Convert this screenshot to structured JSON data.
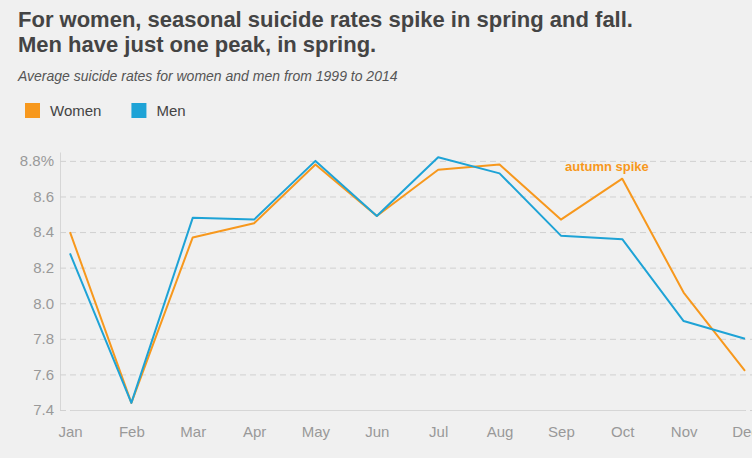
{
  "chart_data": {
    "type": "line",
    "title": [
      "For women, seasonal suicide rates spike in spring and fall.",
      "Men have just one peak, in spring."
    ],
    "subtitle": "Average suicide rates for women and men from 1999 to 2014",
    "annotation": "autumn spike",
    "categories": [
      "Jan",
      "Feb",
      "Mar",
      "Apr",
      "May",
      "Jun",
      "Jul",
      "Aug",
      "Sep",
      "Oct",
      "Nov",
      "Dec"
    ],
    "series": [
      {
        "name": "Women",
        "color": "#f7981d",
        "values": [
          8.4,
          7.44,
          8.37,
          8.45,
          8.78,
          8.49,
          8.75,
          8.78,
          8.47,
          8.7,
          8.06,
          7.62
        ]
      },
      {
        "name": "Men",
        "color": "#1ea3d6",
        "values": [
          8.28,
          7.44,
          8.48,
          8.47,
          8.8,
          8.49,
          8.82,
          8.73,
          8.38,
          8.36,
          7.9,
          7.8
        ]
      }
    ],
    "ylim": [
      7.4,
      8.85
    ],
    "yticks": [
      7.4,
      7.6,
      7.8,
      {
        "value": 8,
        "label": "8.0"
      },
      8.2,
      8.4,
      8.6,
      {
        "value": 8.8,
        "label": "8.8%"
      }
    ],
    "grid": true,
    "legend": "top-left"
  }
}
